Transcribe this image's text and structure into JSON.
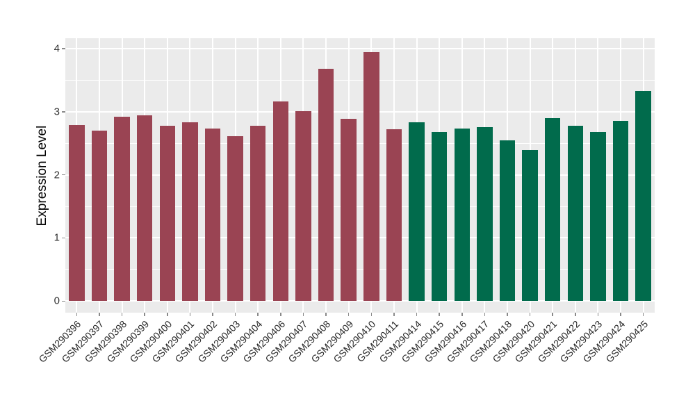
{
  "chart_data": {
    "type": "bar",
    "title": "",
    "xlabel": "",
    "ylabel": "Expression Level",
    "ylim": [
      0,
      4.17
    ],
    "yticks": [
      0,
      1,
      2,
      3,
      4
    ],
    "minor_yticks": [
      0.5,
      1.5,
      2.5,
      3.5
    ],
    "x_tick_rotation_deg": 45,
    "legend": "none",
    "panel_background": "#EBEBEB",
    "gridline_color": "#FFFFFF",
    "axis_text_color": "#333333",
    "categories": [
      "GSM290396",
      "GSM290397",
      "GSM290398",
      "GSM290399",
      "GSM290400",
      "GSM290401",
      "GSM290402",
      "GSM290403",
      "GSM290404",
      "GSM290406",
      "GSM290407",
      "GSM290408",
      "GSM290409",
      "GSM290410",
      "GSM290411",
      "GSM290414",
      "GSM290415",
      "GSM290416",
      "GSM290417",
      "GSM290418",
      "GSM290420",
      "GSM290421",
      "GSM290422",
      "GSM290423",
      "GSM290424",
      "GSM290425"
    ],
    "values": [
      2.79,
      2.7,
      2.92,
      2.94,
      2.78,
      2.83,
      2.73,
      2.61,
      2.78,
      3.16,
      3.01,
      3.68,
      2.89,
      3.95,
      2.72,
      2.83,
      2.68,
      2.73,
      2.76,
      2.55,
      2.39,
      2.9,
      2.78,
      2.68,
      2.85,
      3.33
    ],
    "bar_groups": [
      "maroon",
      "maroon",
      "maroon",
      "maroon",
      "maroon",
      "maroon",
      "maroon",
      "maroon",
      "maroon",
      "maroon",
      "maroon",
      "maroon",
      "maroon",
      "maroon",
      "maroon",
      "green",
      "green",
      "green",
      "green",
      "green",
      "green",
      "green",
      "green",
      "green",
      "green",
      "green"
    ],
    "group_colors": {
      "maroon": "#9A4453",
      "green": "#016B4C"
    }
  }
}
